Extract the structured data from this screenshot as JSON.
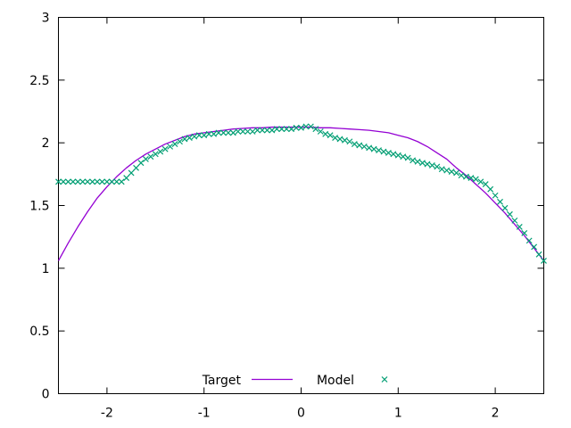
{
  "chart_data": {
    "type": "line",
    "title": "",
    "xlabel": "",
    "ylabel": "",
    "xlim": [
      -2.5,
      2.5
    ],
    "ylim": [
      0,
      3
    ],
    "xticks": [
      -2,
      -1,
      0,
      1,
      2
    ],
    "xtick_labels": [
      "-2",
      "-1",
      "0",
      "1",
      "2"
    ],
    "yticks": [
      0,
      0.5,
      1,
      1.5,
      2,
      2.5,
      3
    ],
    "ytick_labels": [
      "0",
      "0.5",
      "1",
      "1.5",
      "2",
      "2.5",
      "3"
    ],
    "grid": false,
    "legend_position": "bottom-center",
    "series": [
      {
        "name": "Target",
        "style": "line",
        "color": "#9400d3",
        "x": [
          -2.5,
          -2.4,
          -2.3,
          -2.2,
          -2.1,
          -2.0,
          -1.9,
          -1.8,
          -1.7,
          -1.6,
          -1.5,
          -1.4,
          -1.3,
          -1.2,
          -1.1,
          -1.0,
          -0.9,
          -0.8,
          -0.7,
          -0.6,
          -0.5,
          -0.4,
          -0.3,
          -0.2,
          -0.1,
          0.0,
          0.1,
          0.2,
          0.3,
          0.4,
          0.5,
          0.6,
          0.7,
          0.8,
          0.9,
          1.0,
          1.1,
          1.2,
          1.3,
          1.4,
          1.5,
          1.6,
          1.7,
          1.8,
          1.9,
          2.0,
          2.1,
          2.2,
          2.3,
          2.4,
          2.5
        ],
        "y": [
          1.06,
          1.2,
          1.33,
          1.45,
          1.56,
          1.65,
          1.73,
          1.8,
          1.86,
          1.91,
          1.95,
          1.99,
          2.02,
          2.05,
          2.07,
          2.08,
          2.09,
          2.1,
          2.11,
          2.115,
          2.12,
          2.12,
          2.125,
          2.125,
          2.125,
          2.125,
          2.125,
          2.12,
          2.12,
          2.115,
          2.11,
          2.105,
          2.1,
          2.09,
          2.08,
          2.06,
          2.04,
          2.01,
          1.97,
          1.92,
          1.87,
          1.8,
          1.74,
          1.67,
          1.6,
          1.52,
          1.44,
          1.35,
          1.26,
          1.16,
          1.06
        ]
      },
      {
        "name": "Model",
        "style": "points",
        "marker": "x",
        "color": "#009e73",
        "x": [
          -2.5,
          -2.45,
          -2.4,
          -2.35,
          -2.3,
          -2.25,
          -2.2,
          -2.15,
          -2.1,
          -2.05,
          -2.0,
          -1.95,
          -1.9,
          -1.85,
          -1.8,
          -1.75,
          -1.7,
          -1.65,
          -1.6,
          -1.55,
          -1.5,
          -1.45,
          -1.4,
          -1.35,
          -1.3,
          -1.25,
          -1.2,
          -1.15,
          -1.1,
          -1.05,
          -1.0,
          -0.95,
          -0.9,
          -0.85,
          -0.8,
          -0.75,
          -0.7,
          -0.65,
          -0.6,
          -0.55,
          -0.5,
          -0.45,
          -0.4,
          -0.35,
          -0.3,
          -0.25,
          -0.2,
          -0.15,
          -0.1,
          -0.05,
          0.0,
          0.05,
          0.1,
          0.15,
          0.2,
          0.25,
          0.3,
          0.35,
          0.4,
          0.45,
          0.5,
          0.55,
          0.6,
          0.65,
          0.7,
          0.75,
          0.8,
          0.85,
          0.9,
          0.95,
          1.0,
          1.05,
          1.1,
          1.15,
          1.2,
          1.25,
          1.3,
          1.35,
          1.4,
          1.45,
          1.5,
          1.55,
          1.6,
          1.65,
          1.7,
          1.75,
          1.8,
          1.85,
          1.9,
          1.95,
          2.0,
          2.05,
          2.1,
          2.15,
          2.2,
          2.25,
          2.3,
          2.35,
          2.4,
          2.45,
          2.5
        ],
        "y": [
          1.69,
          1.69,
          1.69,
          1.69,
          1.69,
          1.69,
          1.69,
          1.69,
          1.69,
          1.69,
          1.69,
          1.69,
          1.69,
          1.69,
          1.72,
          1.76,
          1.8,
          1.84,
          1.87,
          1.89,
          1.91,
          1.93,
          1.95,
          1.97,
          1.99,
          2.01,
          2.03,
          2.04,
          2.05,
          2.06,
          2.06,
          2.07,
          2.07,
          2.08,
          2.08,
          2.08,
          2.08,
          2.09,
          2.09,
          2.09,
          2.09,
          2.1,
          2.1,
          2.1,
          2.1,
          2.11,
          2.11,
          2.11,
          2.11,
          2.12,
          2.12,
          2.13,
          2.13,
          2.11,
          2.09,
          2.07,
          2.06,
          2.04,
          2.03,
          2.02,
          2.01,
          1.99,
          1.98,
          1.97,
          1.96,
          1.95,
          1.94,
          1.93,
          1.92,
          1.91,
          1.9,
          1.89,
          1.88,
          1.86,
          1.85,
          1.84,
          1.83,
          1.82,
          1.81,
          1.79,
          1.78,
          1.77,
          1.76,
          1.74,
          1.73,
          1.72,
          1.71,
          1.69,
          1.67,
          1.63,
          1.58,
          1.53,
          1.48,
          1.43,
          1.38,
          1.33,
          1.28,
          1.22,
          1.17,
          1.11,
          1.06
        ]
      }
    ],
    "legend": {
      "entries": [
        "Target",
        "Model"
      ]
    }
  }
}
